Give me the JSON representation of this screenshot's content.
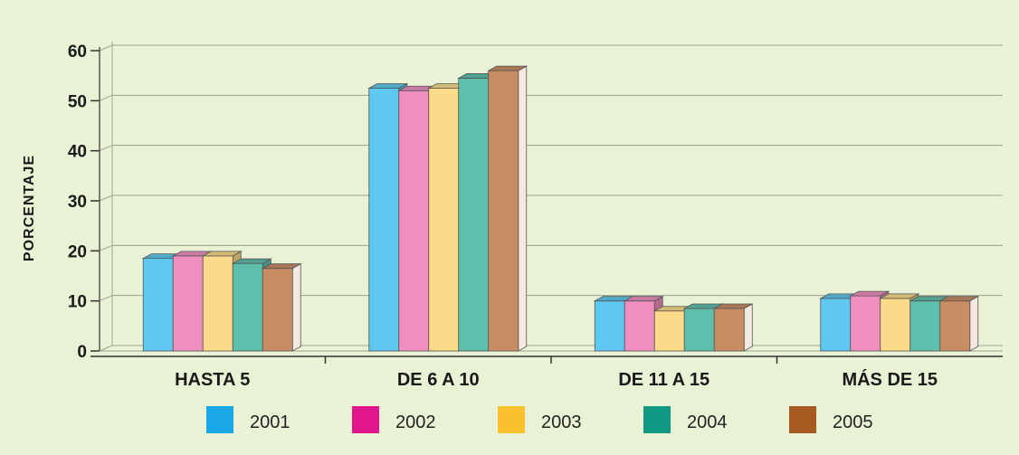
{
  "chart_data": {
    "type": "bar",
    "title": "",
    "xlabel": "",
    "ylabel": "PORCENTAJE",
    "ylim": [
      0,
      60
    ],
    "yticks": [
      0,
      10,
      20,
      30,
      40,
      50,
      60
    ],
    "grid": true,
    "legend_position": "bottom",
    "categories": [
      "HASTA 5",
      "DE 6 A 10",
      "DE 11 A 15",
      "MÁS DE 15"
    ],
    "series": [
      {
        "name": "2001",
        "color": "#5ec8f0",
        "legend_color": "#1aa7e8",
        "values": [
          18.5,
          52.5,
          10,
          10.5
        ]
      },
      {
        "name": "2002",
        "color": "#ef8fbf",
        "legend_color": "#e2178b",
        "values": [
          19,
          52,
          10,
          11
        ]
      },
      {
        "name": "2003",
        "color": "#fbdb8a",
        "legend_color": "#fbc02d",
        "values": [
          19,
          52.5,
          8,
          10.5
        ]
      },
      {
        "name": "2004",
        "color": "#5fbfad",
        "legend_color": "#0f9a84",
        "values": [
          17.5,
          54.5,
          8.5,
          10
        ]
      },
      {
        "name": "2005",
        "color": "#c98d64",
        "legend_color": "#a65a1f",
        "values": [
          16.5,
          56,
          8.5,
          10
        ]
      }
    ]
  }
}
